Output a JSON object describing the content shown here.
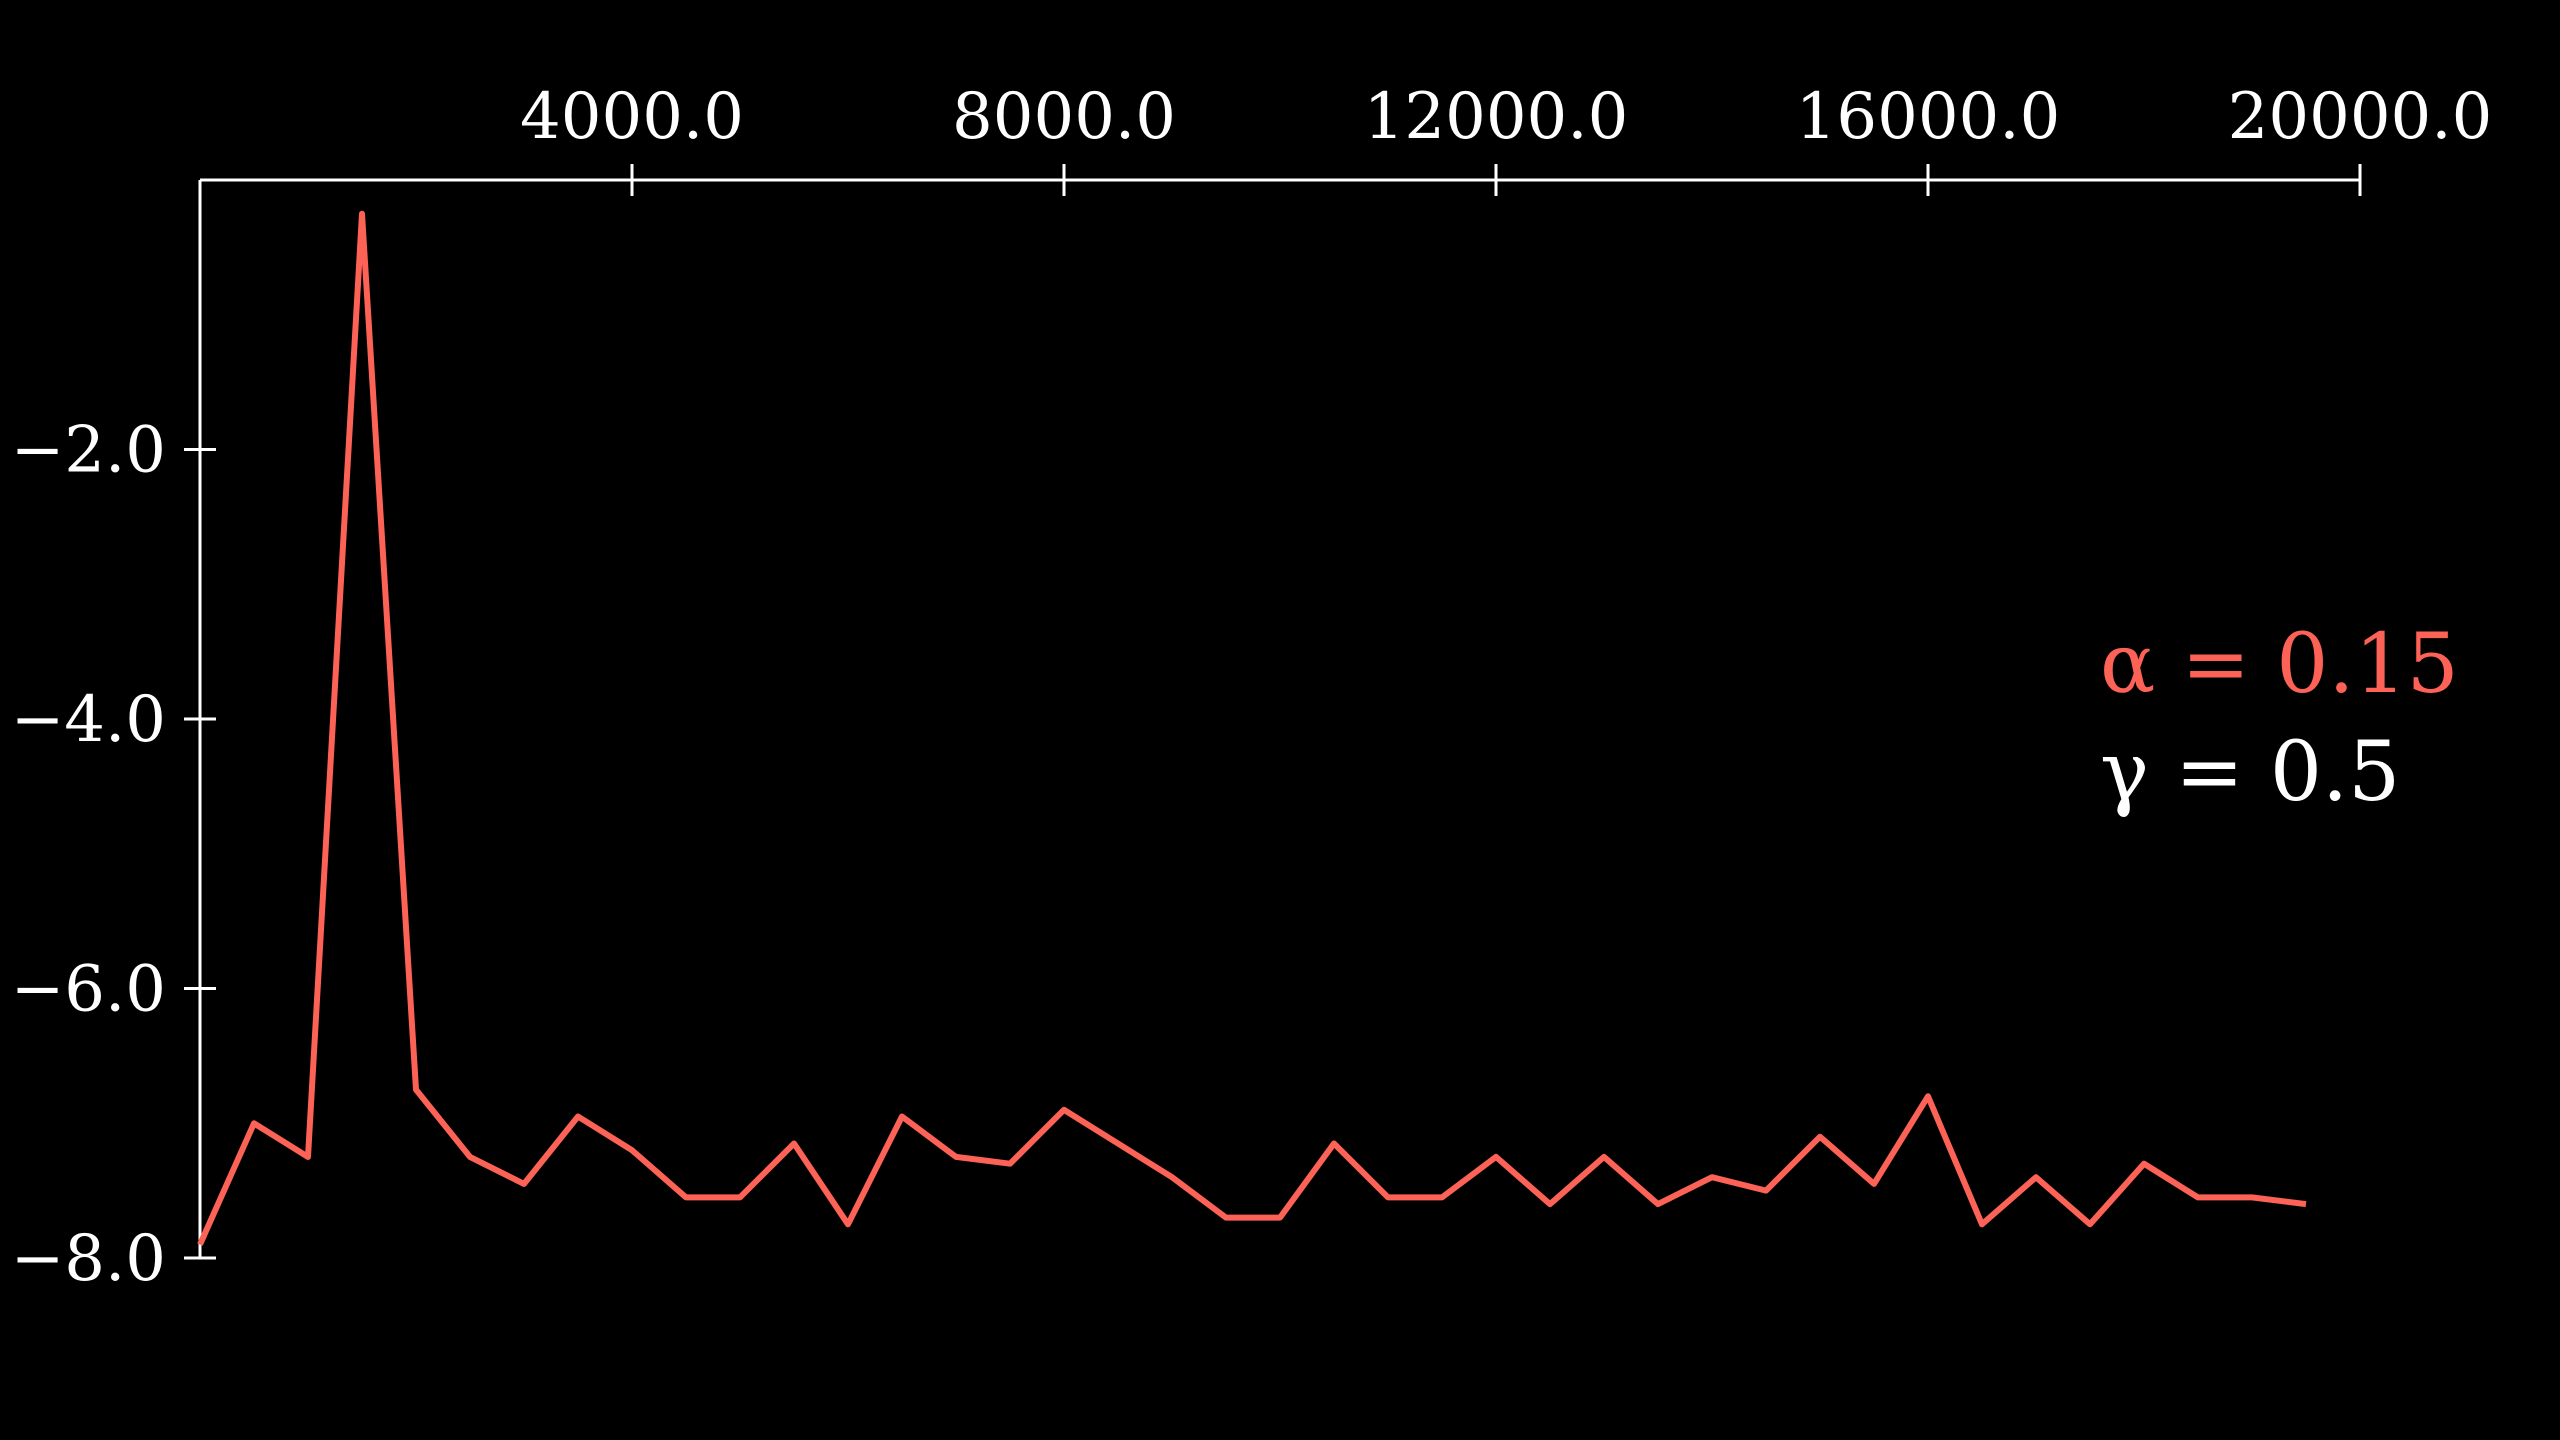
{
  "chart_data": {
    "type": "line",
    "title": "",
    "xlabel": "",
    "ylabel": "",
    "xlim": [
      0,
      20000
    ],
    "ylim": [
      -8,
      0
    ],
    "x_axis_position": "top",
    "grid": false,
    "x_ticks": [
      {
        "value": 4000,
        "label": "4000.0"
      },
      {
        "value": 8000,
        "label": "8000.0"
      },
      {
        "value": 12000,
        "label": "12000.0"
      },
      {
        "value": 16000,
        "label": "16000.0"
      },
      {
        "value": 20000,
        "label": "20000.0"
      }
    ],
    "y_ticks": [
      {
        "value": -2,
        "label": "−2.0"
      },
      {
        "value": -4,
        "label": "−4.0"
      },
      {
        "value": -6,
        "label": "−6.0"
      },
      {
        "value": -8,
        "label": "−8.0"
      }
    ],
    "series": [
      {
        "color": "#fc6255",
        "x": [
          0,
          500,
          1000,
          1500,
          2000,
          2500,
          3000,
          3500,
          4000,
          4500,
          5000,
          5500,
          6000,
          6500,
          7000,
          7500,
          8000,
          8500,
          9000,
          9500,
          10000,
          10500,
          11000,
          11500,
          12000,
          12500,
          13000,
          13500,
          14000,
          14500,
          15000,
          15500,
          16000,
          16500,
          17000,
          17500,
          18000,
          18500,
          19000,
          19500
        ],
        "values": [
          -7.9,
          -7.0,
          -7.25,
          -0.25,
          -6.75,
          -7.25,
          -7.45,
          -6.95,
          -7.2,
          -7.55,
          -7.55,
          -7.15,
          -7.75,
          -6.95,
          -7.25,
          -7.3,
          -6.9,
          -7.15,
          -7.4,
          -7.7,
          -7.7,
          -7.15,
          -7.55,
          -7.55,
          -7.25,
          -7.6,
          -7.25,
          -7.6,
          -7.4,
          -7.5,
          -7.1,
          -7.45,
          -6.8,
          -7.75,
          -7.4,
          -7.75,
          -7.3,
          -7.55,
          -7.55,
          -7.6
        ]
      }
    ],
    "annotations": [
      {
        "text": "α = 0.15",
        "color": "#fc6255"
      },
      {
        "text": "γ = 0.5",
        "color": "#ffffff"
      }
    ]
  }
}
